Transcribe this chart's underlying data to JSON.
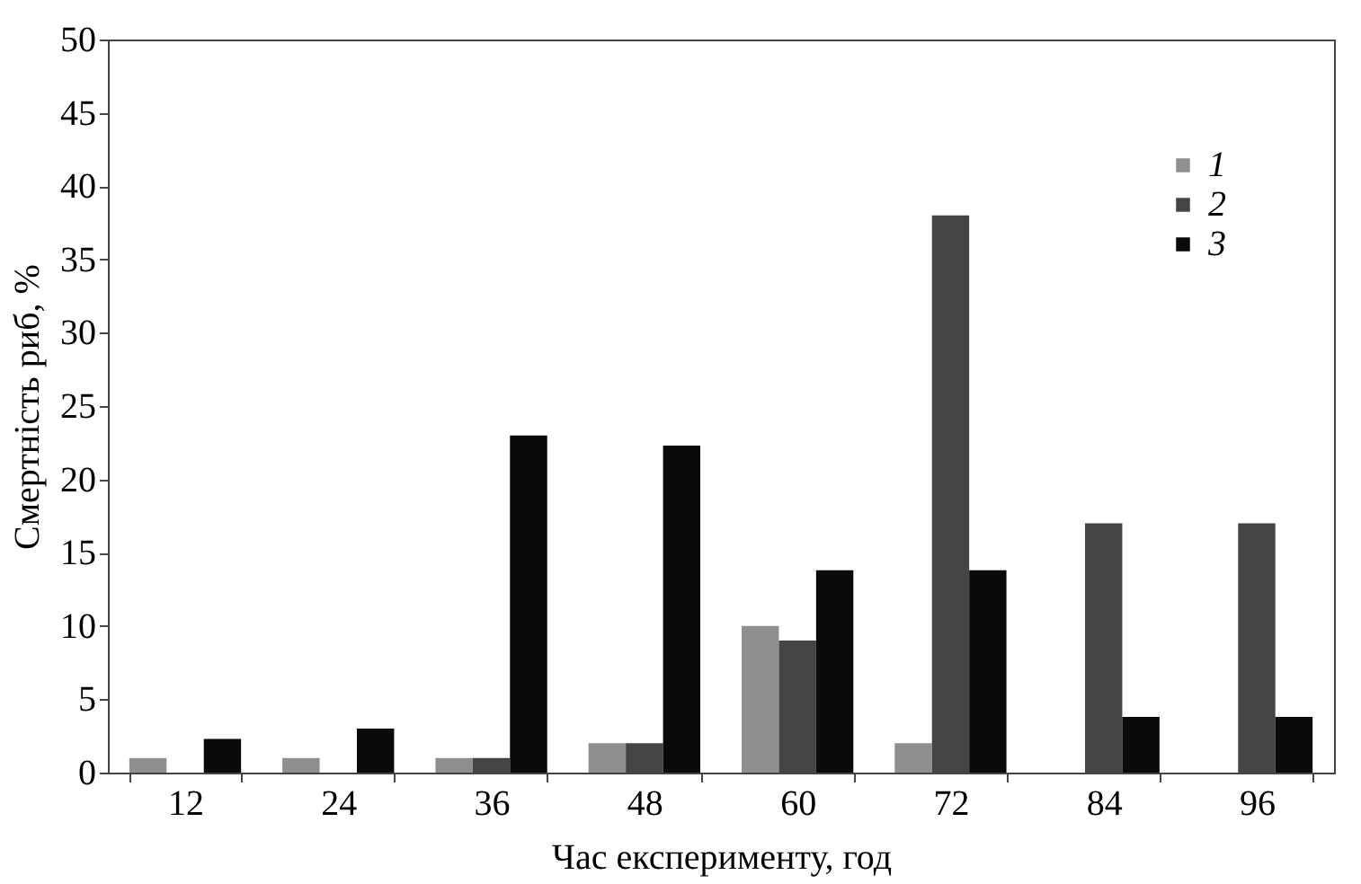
{
  "chart_data": {
    "type": "bar",
    "xlabel": "Час експерименту, год",
    "ylabel": "Смертність риб, %",
    "categories": [
      "12",
      "24",
      "36",
      "48",
      "60",
      "72",
      "84",
      "96"
    ],
    "series": [
      {
        "name": "1",
        "color": "#8f8f8f",
        "values": [
          1,
          1,
          1,
          2,
          10,
          2,
          0,
          0
        ]
      },
      {
        "name": "2",
        "color": "#444444",
        "values": [
          0,
          0,
          1,
          2,
          9,
          38,
          17,
          17
        ]
      },
      {
        "name": "3",
        "color": "#0a0a0a",
        "values": [
          2.3,
          3,
          23,
          22.3,
          13.8,
          13.8,
          3.8,
          3.8
        ]
      }
    ],
    "ylim": [
      0,
      50
    ],
    "yticks": [
      0,
      5,
      10,
      15,
      20,
      25,
      30,
      35,
      40,
      45,
      50
    ],
    "grid": false,
    "legend": "top right"
  }
}
